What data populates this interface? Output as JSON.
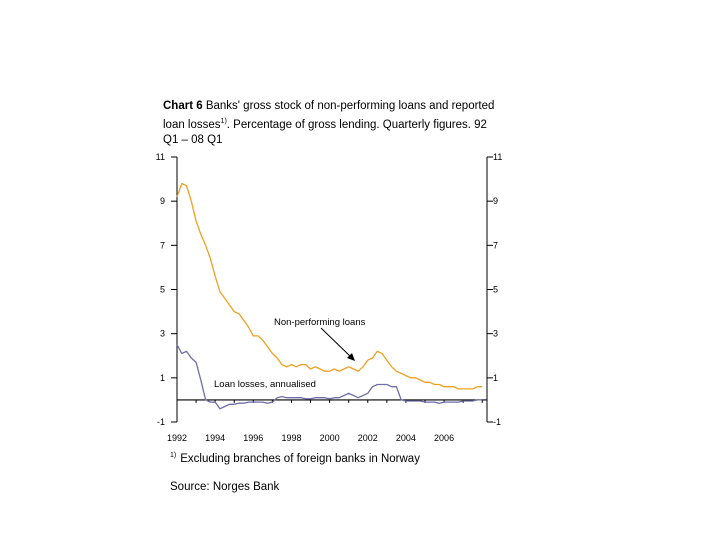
{
  "title": {
    "prefix": "Chart 6",
    "text_part1": "Banks' gross stock of non-performing loans and reported loan losses",
    "superscript": "1)",
    "text_part2": ". Percentage of gross lending. Quarterly figures. 92 Q1 – 08 Q1"
  },
  "footnote": {
    "marker": "1)",
    "text": "Excluding branches of foreign banks in Norway"
  },
  "source": "Source: Norges Bank",
  "colors": {
    "non_performing": "#f0a020",
    "loan_losses": "#6e6ea8",
    "axis": "#000000"
  },
  "chart_data": {
    "type": "line",
    "title": "Banks' gross stock of non-performing loans and reported loan losses",
    "xlabel": "",
    "ylabel": "",
    "xlim": [
      1992,
      2008.25
    ],
    "ylim": [
      -1,
      11
    ],
    "y_ticks": [
      "11",
      "9",
      "7",
      "5",
      "3",
      "1",
      "-1"
    ],
    "x_ticks": [
      "1992",
      "1994",
      "1996",
      "1998",
      "2000",
      "2002",
      "2004",
      "2006"
    ],
    "x_tick_values": [
      1992,
      1994,
      1996,
      1998,
      2000,
      2002,
      2004,
      2006
    ],
    "annotations": [
      "Non-performing loans",
      "Loan losses, annualised"
    ],
    "series": [
      {
        "name": "Non-performing loans",
        "x": [
          1992.0,
          1992.25,
          1992.5,
          1992.75,
          1993.0,
          1993.25,
          1993.5,
          1993.75,
          1994.0,
          1994.25,
          1994.5,
          1994.75,
          1995.0,
          1995.25,
          1995.5,
          1995.75,
          1996.0,
          1996.25,
          1996.5,
          1996.75,
          1997.0,
          1997.25,
          1997.5,
          1997.75,
          1998.0,
          1998.25,
          1998.5,
          1998.75,
          1999.0,
          1999.25,
          1999.5,
          1999.75,
          2000.0,
          2000.25,
          2000.5,
          2000.75,
          2001.0,
          2001.25,
          2001.5,
          2001.75,
          2002.0,
          2002.25,
          2002.5,
          2002.75,
          2003.0,
          2003.25,
          2003.5,
          2003.75,
          2004.0,
          2004.25,
          2004.5,
          2004.75,
          2005.0,
          2005.25,
          2005.5,
          2005.75,
          2006.0,
          2006.25,
          2006.5,
          2006.75,
          2007.0,
          2007.25,
          2007.5,
          2007.75,
          2008.0
        ],
        "values": [
          9.2,
          9.8,
          9.7,
          9.0,
          8.1,
          7.5,
          7.0,
          6.4,
          5.6,
          4.9,
          4.6,
          4.3,
          4.0,
          3.9,
          3.6,
          3.3,
          2.9,
          2.9,
          2.7,
          2.4,
          2.1,
          1.9,
          1.6,
          1.5,
          1.6,
          1.5,
          1.6,
          1.6,
          1.4,
          1.5,
          1.4,
          1.3,
          1.3,
          1.4,
          1.3,
          1.4,
          1.5,
          1.4,
          1.3,
          1.5,
          1.8,
          1.9,
          2.2,
          2.1,
          1.8,
          1.5,
          1.3,
          1.2,
          1.1,
          1.0,
          1.0,
          0.9,
          0.8,
          0.8,
          0.7,
          0.7,
          0.6,
          0.6,
          0.6,
          0.5,
          0.5,
          0.5,
          0.5,
          0.6,
          0.6
        ]
      },
      {
        "name": "Loan losses, annualised",
        "x": [
          1992.0,
          1992.25,
          1992.5,
          1992.75,
          1993.0,
          1993.25,
          1993.5,
          1993.75,
          1994.0,
          1994.25,
          1994.5,
          1994.75,
          1995.0,
          1995.25,
          1995.5,
          1995.75,
          1996.0,
          1996.25,
          1996.5,
          1996.75,
          1997.0,
          1997.25,
          1997.5,
          1997.75,
          1998.0,
          1998.25,
          1998.5,
          1998.75,
          1999.0,
          1999.25,
          1999.5,
          1999.75,
          2000.0,
          2000.25,
          2000.5,
          2000.75,
          2001.0,
          2001.25,
          2001.5,
          2001.75,
          2002.0,
          2002.25,
          2002.5,
          2002.75,
          2003.0,
          2003.25,
          2003.5,
          2003.75,
          2004.0,
          2004.25,
          2004.5,
          2004.75,
          2005.0,
          2005.25,
          2005.5,
          2005.75,
          2006.0,
          2006.25,
          2006.5,
          2006.75,
          2007.0,
          2007.25,
          2007.5,
          2007.75,
          2008.0
        ],
        "values": [
          2.5,
          2.1,
          2.2,
          1.9,
          1.7,
          0.9,
          0.0,
          -0.1,
          -0.1,
          -0.4,
          -0.3,
          -0.2,
          -0.2,
          -0.15,
          -0.15,
          -0.1,
          -0.1,
          -0.1,
          -0.1,
          -0.15,
          -0.1,
          0.1,
          0.15,
          0.1,
          0.1,
          0.1,
          0.1,
          0.05,
          0.05,
          0.1,
          0.1,
          0.1,
          0.05,
          0.1,
          0.1,
          0.2,
          0.3,
          0.2,
          0.1,
          0.2,
          0.3,
          0.6,
          0.7,
          0.7,
          0.7,
          0.6,
          0.6,
          0.0,
          -0.05,
          -0.05,
          -0.05,
          -0.05,
          -0.1,
          -0.1,
          -0.1,
          -0.15,
          -0.1,
          -0.1,
          -0.1,
          -0.1,
          -0.05,
          -0.05,
          -0.05,
          0.0,
          0.0
        ]
      }
    ]
  }
}
